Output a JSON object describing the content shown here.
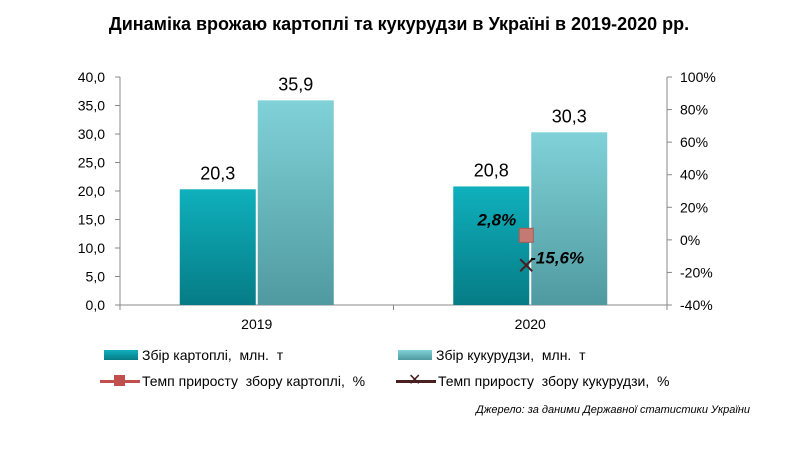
{
  "title": "Динаміка врожаю картоплі та кукурудзи в Україні в 2019-2020 рр.",
  "source": "Джерело: за даними Державної статистики України",
  "chart_data": {
    "type": "bar",
    "title": "Динаміка врожаю картоплі та кукурудзи в Україні в 2019-2020 рр.",
    "categories": [
      "2019",
      "2020"
    ],
    "ylim": [
      0,
      40
    ],
    "y_ticks": [
      "0,0",
      "5,0",
      "10,0",
      "15,0",
      "20,0",
      "25,0",
      "30,0",
      "35,0",
      "40,0"
    ],
    "y2lim": [
      -40,
      100
    ],
    "y2_ticks": [
      "-40%",
      "-20%",
      "0%",
      "20%",
      "40%",
      "60%",
      "80%",
      "100%"
    ],
    "grid": false,
    "legend_position": "bottom",
    "series": [
      {
        "name": "Збір картоплі,  млн.  т",
        "kind": "bar",
        "axis": "left",
        "color": "#0a9aa6",
        "values": [
          20.3,
          20.8
        ],
        "labels": [
          "20,3",
          "20,8"
        ]
      },
      {
        "name": "Збір кукурудзи,  млн.  т",
        "kind": "bar",
        "axis": "left",
        "color": "#6cc4cc",
        "values": [
          35.9,
          30.3
        ],
        "labels": [
          "35,9",
          "30,3"
        ]
      },
      {
        "name": "Темп приросту  збору картоплі,  %",
        "kind": "line",
        "axis": "right",
        "color": "#c0504d",
        "marker": "square",
        "values": [
          null,
          2.8
        ],
        "labels": [
          "",
          "2,8%"
        ]
      },
      {
        "name": "Темп приросту  збору кукурудзи,  %",
        "kind": "line",
        "axis": "right",
        "color": "#4a1f1f",
        "marker": "x",
        "values": [
          null,
          -15.6
        ],
        "labels": [
          "",
          "-15,6%"
        ]
      }
    ]
  }
}
